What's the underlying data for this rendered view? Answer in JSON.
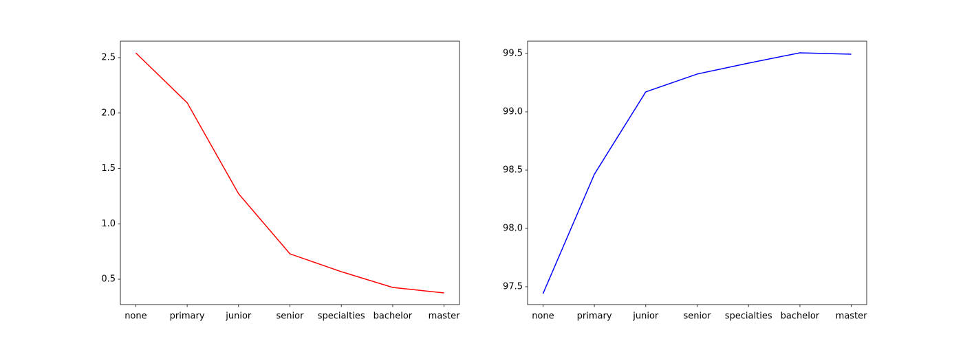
{
  "chart_data": [
    {
      "type": "line",
      "categories": [
        "none",
        "primary",
        "junior",
        "senior",
        "specialties",
        "bachelor",
        "master"
      ],
      "series": [
        {
          "color": "#ff0000",
          "values": [
            2.543,
            2.093,
            1.272,
            0.729,
            0.568,
            0.426,
            0.376
          ]
        }
      ],
      "ylim": [
        0.271,
        2.649
      ],
      "yticks": [
        0.5,
        {
          "value": 1,
          "label": "1.0"
        },
        1.5,
        {
          "value": 2,
          "label": "2.0"
        },
        2.5
      ]
    },
    {
      "type": "line",
      "categories": [
        "none",
        "primary",
        "junior",
        "senior",
        "specialties",
        "bachelor",
        "master"
      ],
      "series": [
        {
          "color": "#0000ff",
          "values": [
            97.441,
            98.465,
            99.171,
            99.324,
            99.418,
            99.506,
            99.494
          ]
        }
      ],
      "ylim": [
        97.347,
        99.606
      ],
      "yticks": [
        97.5,
        {
          "value": 98,
          "label": "98.0"
        },
        98.5,
        {
          "value": 99,
          "label": "99.0"
        },
        99.5
      ]
    }
  ]
}
